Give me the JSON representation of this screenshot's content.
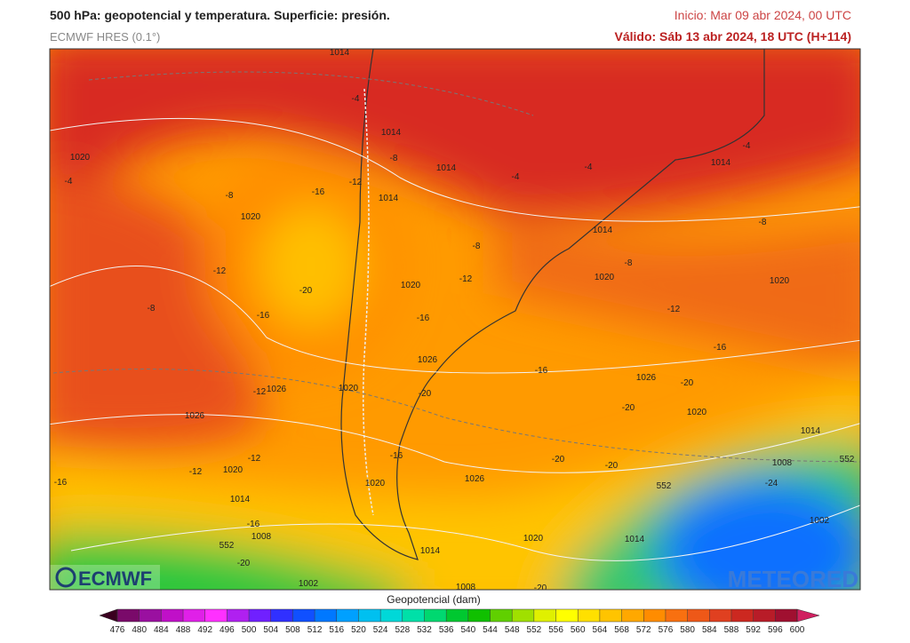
{
  "header": {
    "title": "500 hPa: geopotencial y temperatura. Superficie: presión.",
    "model": "ECMWF HRES (0.1°)",
    "init": "Inicio: Mar 09 abr 2024, 00 UTC",
    "valid": "Válido: Sáb 13 abr 2024, 18 UTC (H+114)"
  },
  "map_labels": [
    "1014",
    "-4",
    "1014",
    "-8",
    "1014",
    "1020",
    "-4",
    "-8",
    "-16",
    "-12",
    "1014",
    "1020",
    "-4",
    "-4",
    "-4",
    "1014",
    "-8",
    "1014",
    "-8",
    "-8",
    "1020",
    "-12",
    "1020",
    "-12",
    "-20",
    "1020",
    "-8",
    "-16",
    "-16",
    "-12",
    "-16",
    "1026",
    "-16",
    "1026",
    "-20",
    "-12",
    "1026",
    "1020",
    "-20",
    "-20",
    "1020",
    "1026",
    "1014",
    "-12",
    "-12",
    "1020",
    "-16",
    "-20",
    "-20",
    "1008",
    "552",
    "-16",
    "1026",
    "1020",
    "552",
    "-24",
    "1014",
    "-16",
    "1008",
    "1002",
    "1020",
    "1014",
    "552",
    "-20",
    "1014",
    "1002",
    "1008",
    "-20"
  ],
  "logos": {
    "left": "ECMWF",
    "right": "METEORED"
  },
  "colorbar": {
    "title": "Geopotencial (dam)",
    "levels": [
      476,
      480,
      484,
      488,
      492,
      496,
      500,
      504,
      508,
      512,
      516,
      520,
      524,
      528,
      532,
      536,
      540,
      544,
      548,
      552,
      556,
      560,
      564,
      568,
      572,
      576,
      580,
      584,
      588,
      592,
      596,
      600
    ],
    "colors": [
      "#3a0020",
      "#7a0a6a",
      "#9a10a0",
      "#c010c8",
      "#e020e8",
      "#ff30ff",
      "#b020f0",
      "#7020ff",
      "#3030ff",
      "#1050ff",
      "#0078ff",
      "#00a0ff",
      "#00c0f0",
      "#00d8d8",
      "#00e0a8",
      "#00d870",
      "#00c830",
      "#10c000",
      "#60d000",
      "#a0e000",
      "#e0f000",
      "#ffff00",
      "#ffe000",
      "#ffc400",
      "#ffa800",
      "#ff8c00",
      "#f87010",
      "#ee5818",
      "#e04020",
      "#cc2820",
      "#b81c28",
      "#a01030",
      "#d02060"
    ]
  }
}
